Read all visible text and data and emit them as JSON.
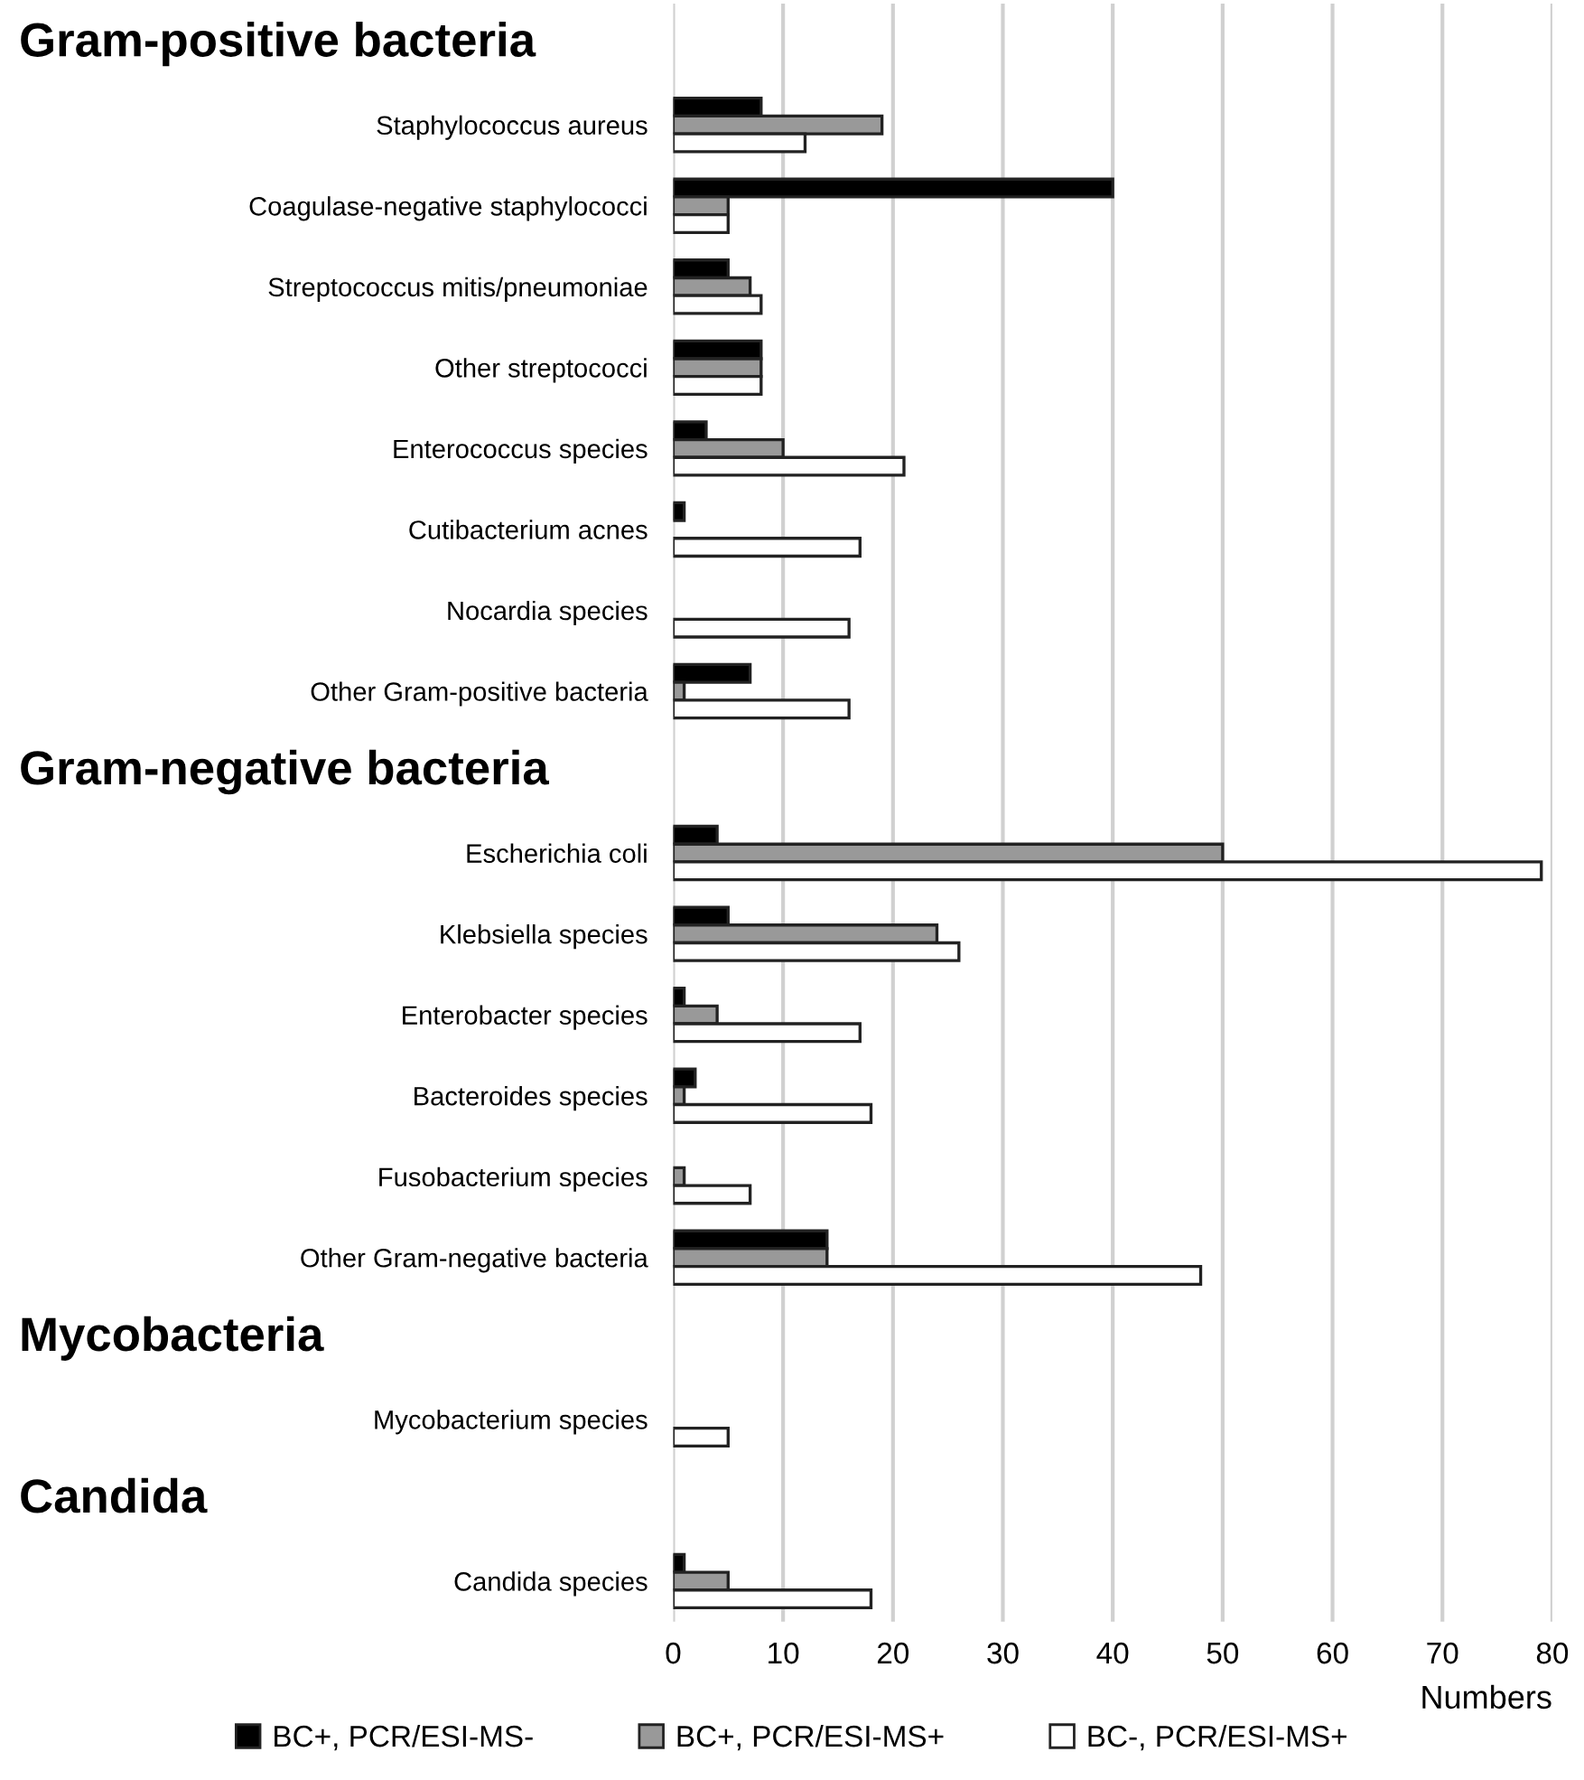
{
  "chart_data": {
    "type": "bar",
    "orientation": "horizontal",
    "categories": [
      null,
      "Staphylococcus aureus",
      "Coagulase-negative staphylococci",
      "Streptococcus mitis/pneumoniae",
      "Other streptococci",
      "Enterococcus species",
      "Cutibacterium acnes",
      "Nocardia species",
      "Other Gram-positive bacteria",
      null,
      "Escherichia coli",
      "Klebsiella species",
      "Enterobacter species",
      "Bacteroides species",
      "Fusobacterium species",
      "Other Gram-negative bacteria",
      null,
      "Mycobacterium species",
      null,
      "Candida species"
    ],
    "annotations": [
      "Gram-positive bacteria",
      "Gram-negative bacteria",
      "Mycobacteria",
      "Candida"
    ],
    "series": [
      {
        "name": "BC+, PCR/ESI-MS-",
        "color": "#000000",
        "values": [
          null,
          8,
          40,
          5,
          8,
          3,
          1,
          null,
          7,
          null,
          4,
          5,
          1,
          2,
          null,
          14,
          null,
          null,
          null,
          1
        ]
      },
      {
        "name": "BC+, PCR/ESI-MS+",
        "color": "#999999",
        "values": [
          null,
          19,
          5,
          7,
          8,
          10,
          null,
          null,
          1,
          null,
          50,
          24,
          4,
          1,
          1,
          14,
          null,
          null,
          null,
          5
        ]
      },
      {
        "name": "BC-, PCR/ESI-MS+",
        "color": "#ffffff",
        "values": [
          null,
          12,
          5,
          8,
          8,
          21,
          17,
          16,
          16,
          null,
          79,
          26,
          17,
          18,
          7,
          48,
          null,
          5,
          null,
          18
        ]
      }
    ],
    "xlabel": "Numbers",
    "xlim": [
      0,
      80
    ],
    "xticks": [
      0,
      10,
      20,
      30,
      40,
      50,
      60,
      70,
      80
    ],
    "grid": "x",
    "legend": "bottom"
  }
}
